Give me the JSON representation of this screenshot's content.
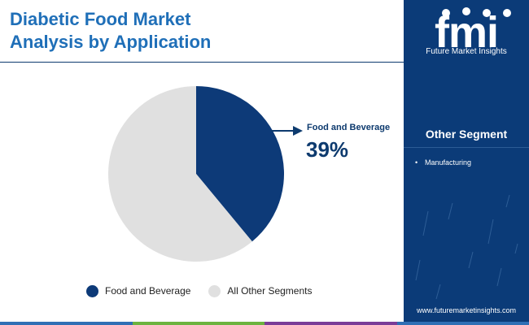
{
  "header": {
    "title_line1": "Diabetic Food Market",
    "title_line2": "Analysis by Application"
  },
  "brand": {
    "logo_text": "fmi",
    "name": "Future Market Insights",
    "website": "www.futuremarketinsights.com",
    "panel_color": "#0b3b78"
  },
  "other_segment": {
    "title": "Other Segment",
    "items": [
      "Manufacturing"
    ]
  },
  "callout": {
    "label": "Food and Beverage",
    "value": "39%"
  },
  "chart_data": {
    "type": "pie",
    "title": "Diabetic Food Market Analysis by Application",
    "categories": [
      "Food and Beverage",
      "All Other Segments"
    ],
    "values": [
      39,
      61
    ],
    "colors": [
      "#0d3a78",
      "#e0e0e0"
    ],
    "start_angle_deg": 0,
    "legend_position": "bottom"
  },
  "legend": {
    "items": [
      {
        "label": "Food and Beverage",
        "color": "#0d3a78"
      },
      {
        "label": "All Other Segments",
        "color": "#e0e0e0"
      }
    ]
  },
  "bottom_bar_colors": [
    "#2f6fb5",
    "#6cb33f",
    "#7a3c98",
    "#2f6fb5"
  ]
}
